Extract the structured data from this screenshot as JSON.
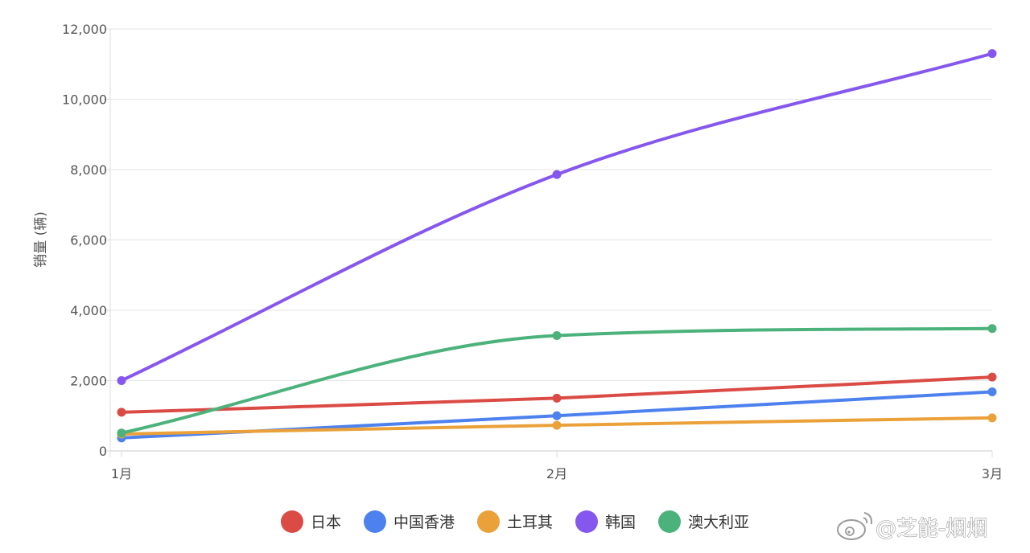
{
  "chart_data": {
    "type": "line",
    "title": "",
    "xlabel": "",
    "ylabel": "销量 (辆)",
    "categories": [
      "1月",
      "2月",
      "3月"
    ],
    "ylim": [
      0,
      12000
    ],
    "yticks": [
      0,
      2000,
      4000,
      6000,
      8000,
      10000,
      12000
    ],
    "ytick_labels": [
      "0",
      "2,000",
      "4,000",
      "6,000",
      "8,000",
      "10,000",
      "12,000"
    ],
    "grid": true,
    "legend_position": "bottom",
    "series": [
      {
        "name": "日本",
        "color": "#db4b45",
        "values": [
          1100,
          1500,
          2100
        ]
      },
      {
        "name": "中国香港",
        "color": "#4c81ee",
        "values": [
          370,
          1000,
          1680
        ]
      },
      {
        "name": "土耳其",
        "color": "#eba13a",
        "values": [
          480,
          730,
          940
        ]
      },
      {
        "name": "韩国",
        "color": "#8557ee",
        "values": [
          2000,
          7860,
          11300
        ]
      },
      {
        "name": "澳大利亚",
        "color": "#4cb27b",
        "values": [
          510,
          3280,
          3480
        ]
      }
    ]
  },
  "watermark": {
    "text": "@芝能-烟烟"
  }
}
